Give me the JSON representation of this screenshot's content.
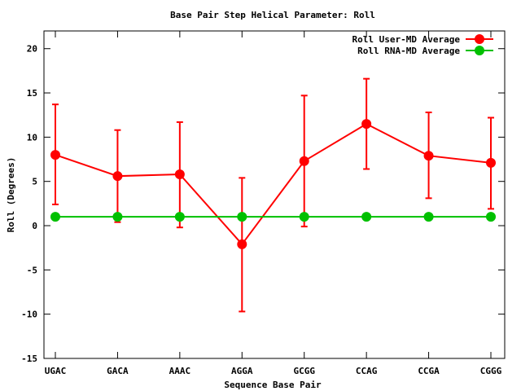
{
  "chart_data": {
    "type": "line",
    "title": "Base Pair Step Helical Parameter: Roll",
    "xlabel": "Sequence Base Pair",
    "ylabel": "Roll (Degrees)",
    "categories": [
      "UGAC",
      "GACA",
      "AAAC",
      "AGGA",
      "GCGG",
      "CCAG",
      "CCGA",
      "CGGG"
    ],
    "ylim": [
      -15,
      22
    ],
    "yticks": [
      -15,
      -10,
      -5,
      0,
      5,
      10,
      15,
      20
    ],
    "legend_position": "top-right",
    "series": [
      {
        "name": "Roll User-MD Average",
        "color": "#ff0000",
        "values": [
          8.0,
          5.6,
          5.8,
          -2.1,
          7.3,
          11.5,
          7.9,
          7.1
        ],
        "err_low": [
          2.4,
          0.4,
          -0.2,
          -9.7,
          -0.1,
          6.4,
          3.1,
          1.9
        ],
        "err_high": [
          13.7,
          10.8,
          11.7,
          5.4,
          14.7,
          16.6,
          12.8,
          12.2
        ]
      },
      {
        "name": "Roll RNA-MD Average",
        "color": "#00c000",
        "values": [
          1.0,
          1.0,
          1.0,
          1.0,
          1.0,
          1.0,
          1.0,
          1.0
        ]
      }
    ]
  }
}
